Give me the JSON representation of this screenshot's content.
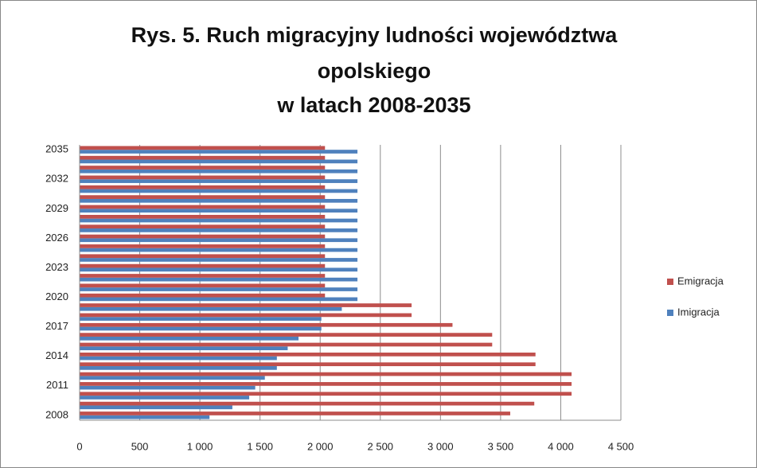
{
  "chart_data": {
    "type": "bar",
    "orientation": "horizontal",
    "title": [
      "Rys. 5. Ruch migracyjny ludności województwa",
      "opolskiego",
      "w latach 2008-2035"
    ],
    "categories": [
      "2008",
      null,
      null,
      "2011",
      null,
      null,
      "2014",
      null,
      null,
      "2017",
      null,
      null,
      "2020",
      null,
      null,
      "2023",
      null,
      null,
      "2026",
      null,
      null,
      "2029",
      null,
      null,
      "2032",
      null,
      null,
      "2035"
    ],
    "series": [
      {
        "name": "Imigracja",
        "color": "#4f81bd",
        "values": [
          1080,
          1270,
          1410,
          1460,
          1540,
          1640,
          1640,
          1730,
          1820,
          2010,
          2010,
          2180,
          2310,
          2310,
          2310,
          2310,
          2310,
          2310,
          2310,
          2310,
          2310,
          2310,
          2310,
          2310,
          2310,
          2310,
          2310,
          2310
        ]
      },
      {
        "name": "Emigracja",
        "color": "#c0504d",
        "values": [
          3580,
          3780,
          4090,
          4090,
          4090,
          3790,
          3790,
          3430,
          3430,
          3100,
          2760,
          2760,
          2040,
          2040,
          2040,
          2040,
          2040,
          2040,
          2040,
          2040,
          2040,
          2040,
          2040,
          2040,
          2040,
          2040,
          2040,
          2040
        ]
      }
    ],
    "xlim": [
      0,
      4500
    ],
    "xticks": [
      0,
      500,
      {
        "value": 1000,
        "label": "1 000"
      },
      {
        "value": 1500,
        "label": "1 500"
      },
      {
        "value": 2000,
        "label": "2 000"
      },
      {
        "value": 2500,
        "label": "2 500"
      },
      {
        "value": 3000,
        "label": "3 000"
      },
      {
        "value": 3500,
        "label": "3 500"
      },
      {
        "value": 4000,
        "label": "4 000"
      },
      {
        "value": 4500,
        "label": "4 500"
      }
    ],
    "grid": true,
    "legend": "right"
  }
}
